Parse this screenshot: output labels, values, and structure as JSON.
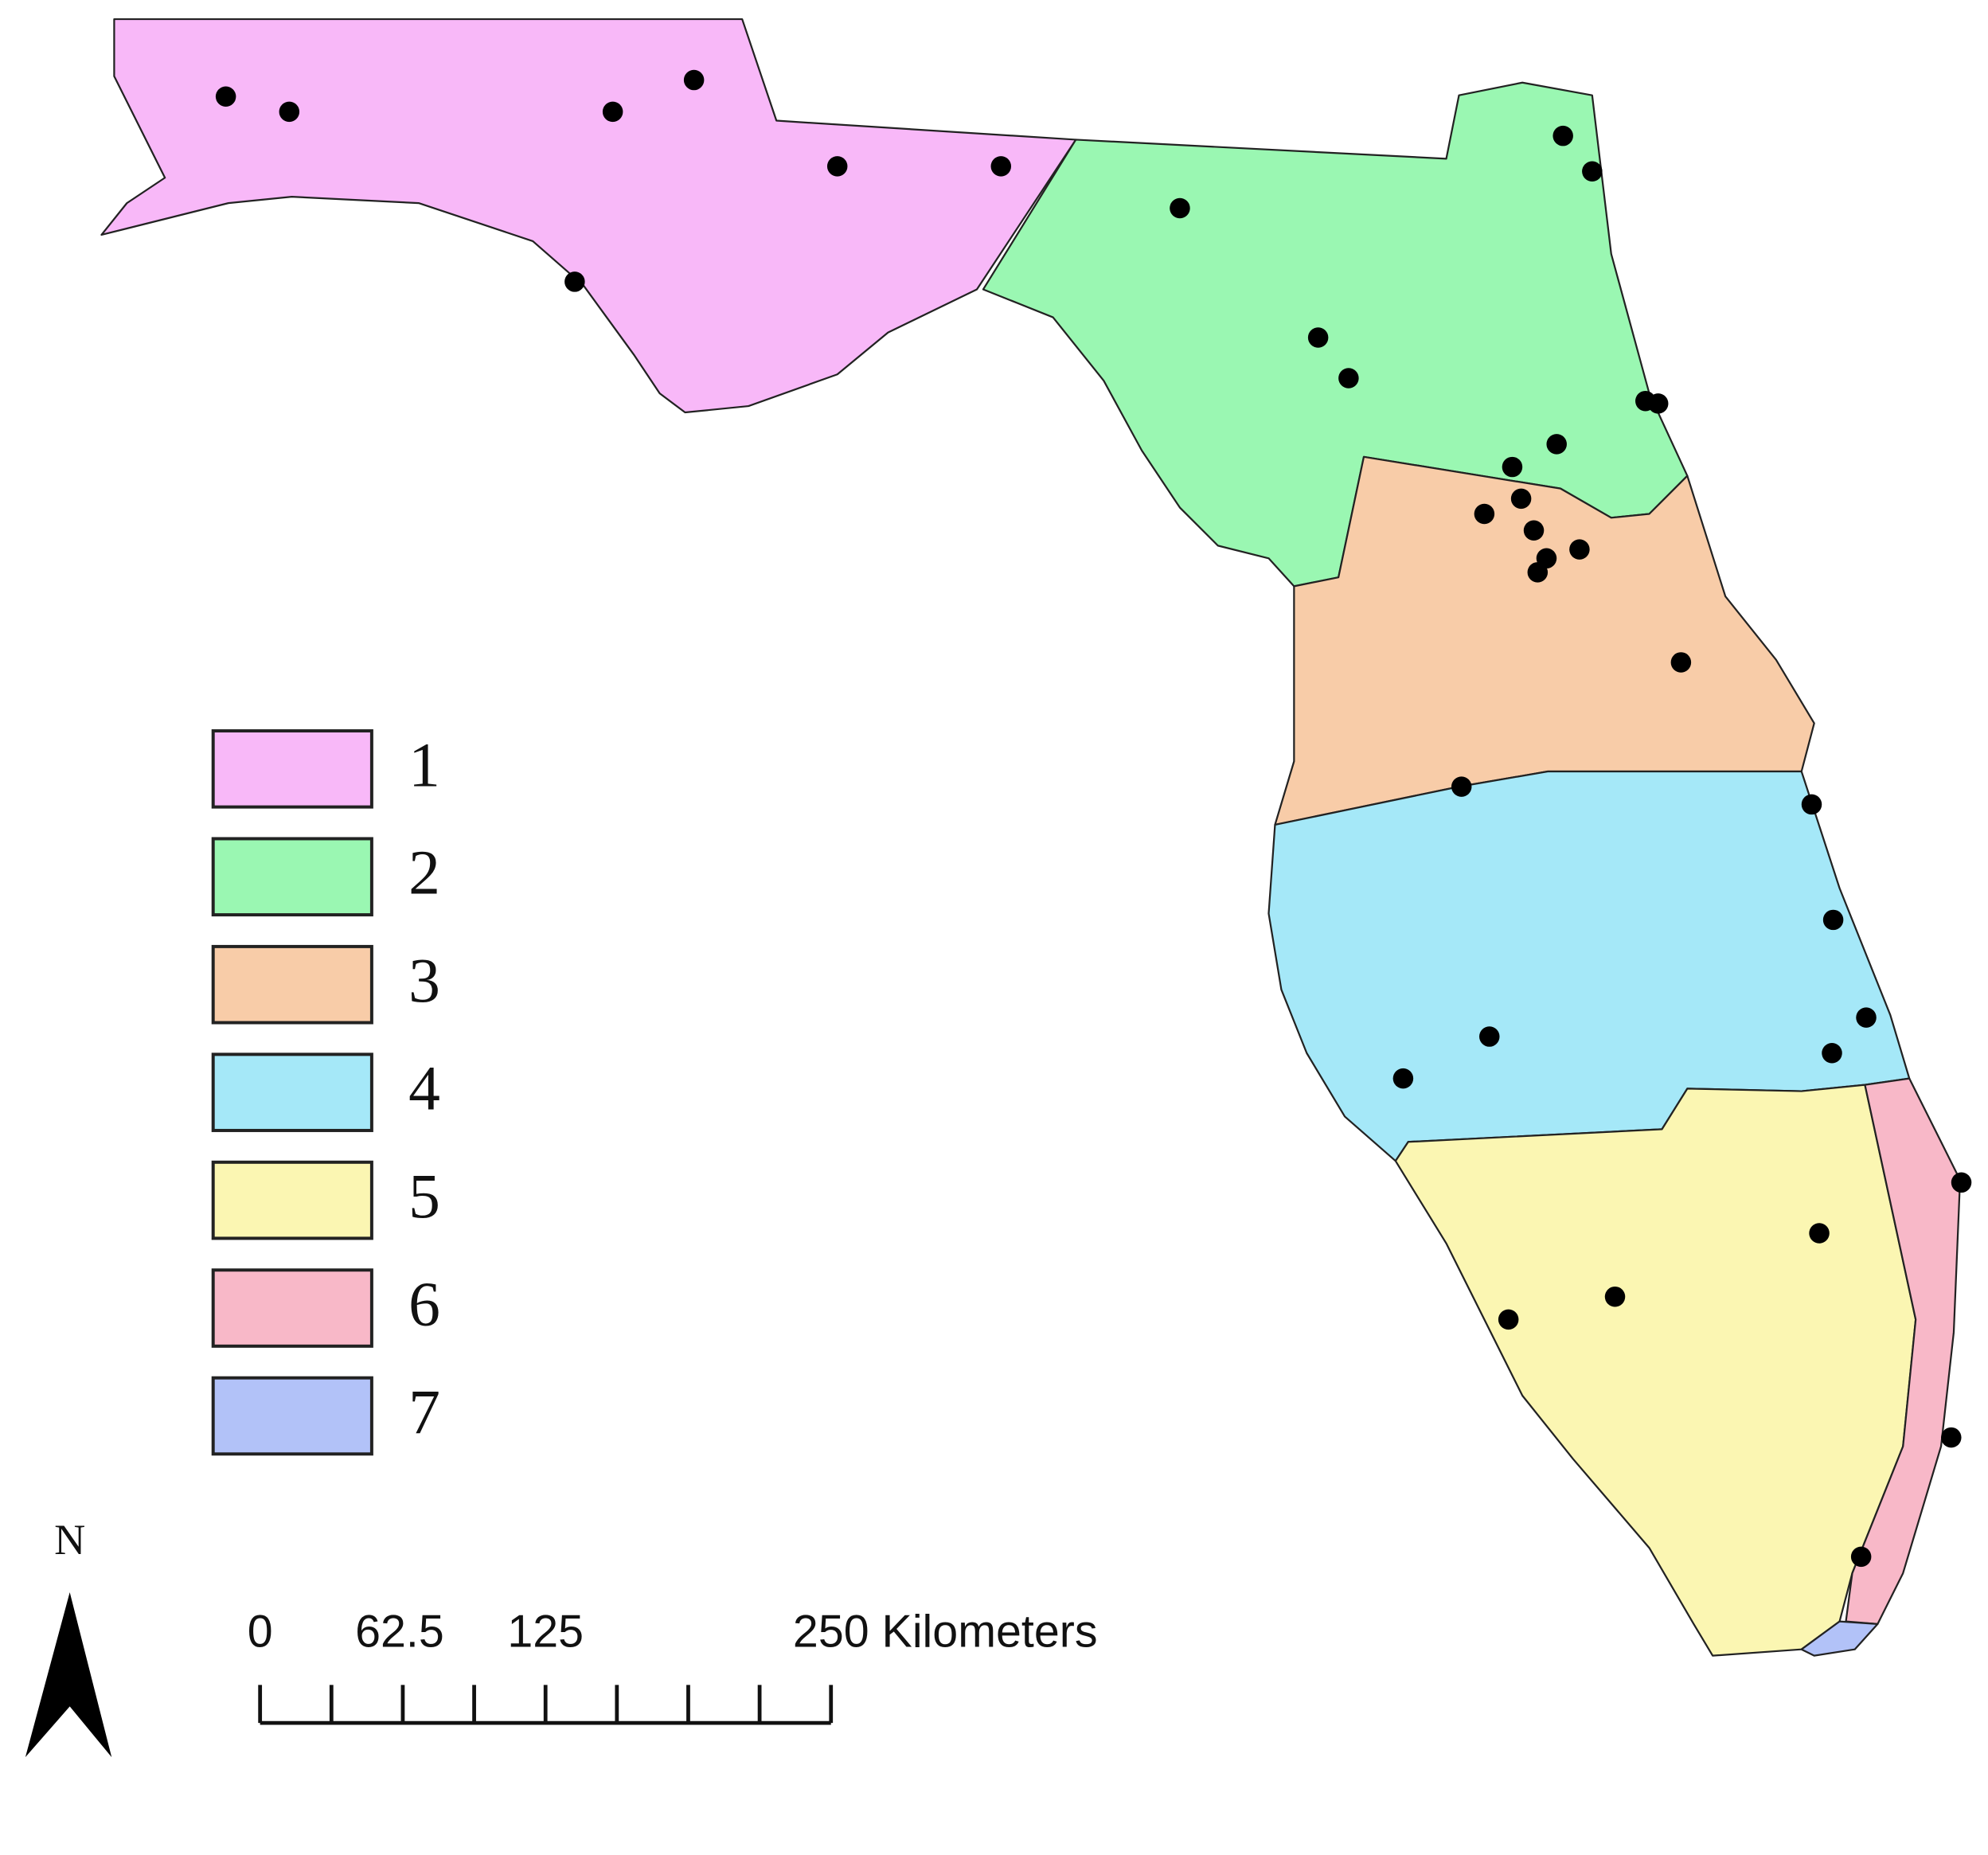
{
  "legend": {
    "items": [
      {
        "label": "1",
        "color": "#f8b8f8"
      },
      {
        "label": "2",
        "color": "#9af7b2"
      },
      {
        "label": "3",
        "color": "#f8cca8"
      },
      {
        "label": "4",
        "color": "#a5e8f8"
      },
      {
        "label": "5",
        "color": "#fbf6b2"
      },
      {
        "label": "6",
        "color": "#f8b8c8"
      },
      {
        "label": "7",
        "color": "#b2c2f8"
      }
    ]
  },
  "scale_bar": {
    "labels": [
      "0",
      "62.5",
      "125",
      "250 Kilometers"
    ]
  },
  "north_arrow": {
    "label": "N"
  }
}
